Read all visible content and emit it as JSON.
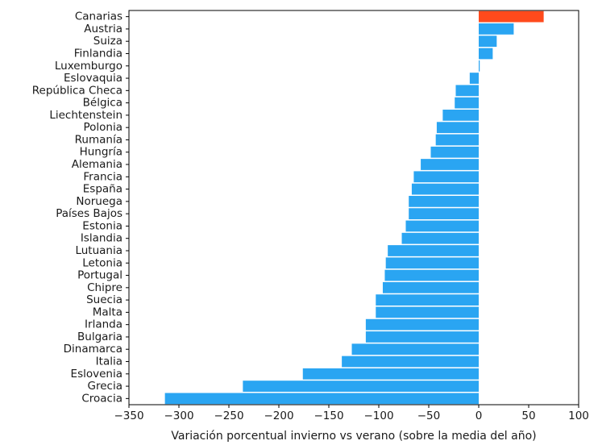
{
  "chart_data": {
    "type": "bar",
    "orientation": "horizontal",
    "categories": [
      "Canarias",
      "Austria",
      "Suiza",
      "Finlandia",
      "Luxemburgo",
      "Eslovaquia",
      "República Checa",
      "Bélgica",
      "Liechtenstein",
      "Polonia",
      "Rumanía",
      "Hungría",
      "Alemania",
      "Francia",
      "España",
      "Noruega",
      "Países Bajos",
      "Estonia",
      "Islandia",
      "Lutuania",
      "Letonia",
      "Portugal",
      "Chipre",
      "Suecia",
      "Malta",
      "Irlanda",
      "Bulgaria",
      "Dinamarca",
      "Italia",
      "Eslovenia",
      "Grecia",
      "Croacia"
    ],
    "values": [
      65,
      35,
      18,
      14,
      1,
      -9,
      -23,
      -24,
      -36,
      -42,
      -43,
      -48,
      -58,
      -65,
      -67,
      -70,
      -70,
      -73,
      -77,
      -91,
      -93,
      -94,
      -96,
      -103,
      -103,
      -113,
      -113,
      -127,
      -137,
      -176,
      -236,
      -314
    ],
    "highlight_category": "Canarias",
    "colors": {
      "default": "#2aa5f2",
      "highlight": "#ff4a1c"
    },
    "xlim": [
      -350,
      100
    ],
    "xticks": [
      -350,
      -300,
      -250,
      -200,
      -150,
      -100,
      -50,
      0,
      50,
      100
    ],
    "xlabel": "Variación porcentual invierno vs verano (sobre la media del año)",
    "ylabel": "",
    "title": "",
    "grid": false,
    "legend": "none"
  }
}
